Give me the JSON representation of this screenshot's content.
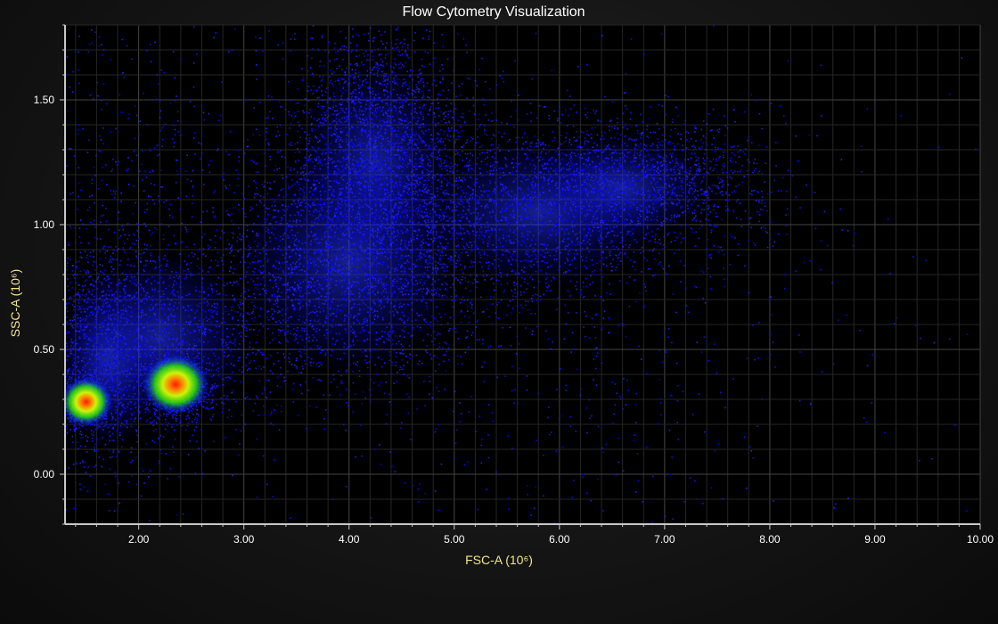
{
  "chart_data": {
    "type": "scatter",
    "title": "Flow Cytometry Visualization",
    "xlabel": "FSC-A (10⁶)",
    "ylabel": "SSC-A (10⁶)",
    "xlim": [
      1.3,
      10.0
    ],
    "ylim": [
      -0.2,
      1.8
    ],
    "xticks": [
      "2.00",
      "3.00",
      "4.00",
      "5.00",
      "6.00",
      "7.00",
      "8.00",
      "9.00",
      "10.00"
    ],
    "xtick_values": [
      2,
      3,
      4,
      5,
      6,
      7,
      8,
      9,
      10
    ],
    "yticks": [
      "0.00",
      "0.50",
      "1.00",
      "1.50"
    ],
    "ytick_values": [
      0,
      0.5,
      1.0,
      1.5
    ],
    "grid": true,
    "colormap": [
      "#0000ff",
      "#00ff00",
      "#ffff00",
      "#ff0000"
    ],
    "density_clusters": [
      {
        "center": [
          1.5,
          0.29
        ],
        "peak": "high"
      },
      {
        "center": [
          2.35,
          0.36
        ],
        "peak": "high"
      }
    ]
  },
  "colors": {
    "plot_background": "#000000",
    "axis_line": "#c8c8c8",
    "grid_line": "#3a3a3a",
    "title_text": "#ffffff",
    "tick_text": "#ffffff",
    "axis_label_text": "#f0e68c"
  }
}
